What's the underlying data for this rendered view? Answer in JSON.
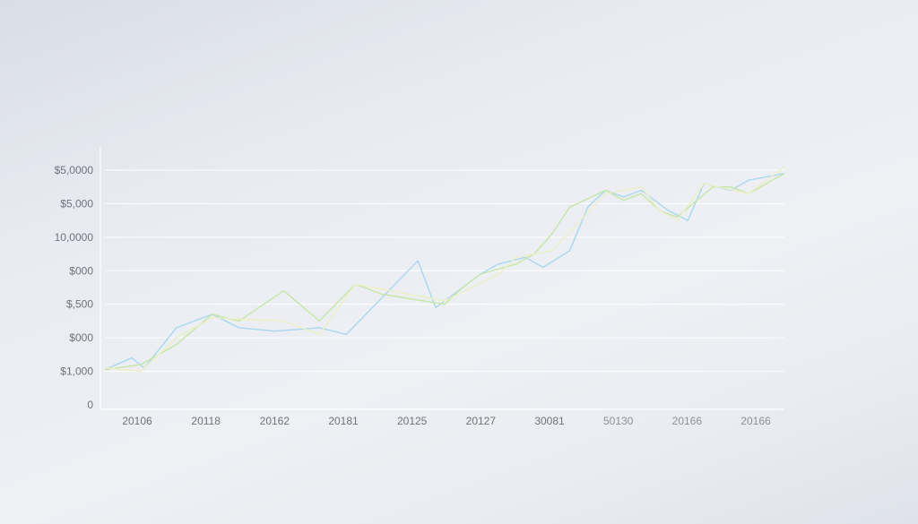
{
  "chart_data": {
    "type": "line",
    "y_tick_labels": [
      "0",
      "$1,000",
      "$000",
      "$,500",
      "$000",
      "10,0000",
      "$5,000",
      "$5,0000"
    ],
    "x_tick_labels": [
      "20106",
      "20118",
      "20162",
      "20181",
      "20125",
      "20127",
      "30081",
      "50130",
      "20166",
      "20166"
    ],
    "ylim": [
      0,
      7
    ],
    "xlim": [
      0,
      19
    ],
    "grid": true,
    "series": [
      {
        "color": "#a9d8f0",
        "x": [
          0,
          0.75,
          1.1,
          2,
          3,
          3.75,
          4.75,
          6,
          6.75,
          8.75,
          9.25,
          10.5,
          11,
          11.75,
          12.25,
          13,
          13.5,
          14,
          14.5,
          15,
          15.75,
          16.3,
          16.75,
          17.5,
          18,
          19
        ],
        "y": [
          1.05,
          1.4,
          1.1,
          2.3,
          2.7,
          2.3,
          2.2,
          2.3,
          2.1,
          4.3,
          2.9,
          3.9,
          4.2,
          4.4,
          4.1,
          4.6,
          5.9,
          6.4,
          6.2,
          6.4,
          5.8,
          5.5,
          6.6,
          6.4,
          6.7,
          6.9
        ]
      },
      {
        "color": "#c5e6a6",
        "x": [
          0,
          1,
          2,
          3,
          3.75,
          5,
          6,
          7,
          7.75,
          9.5,
          10,
          10.5,
          11.5,
          12,
          12.5,
          13,
          14,
          14.5,
          15,
          15.5,
          16,
          17,
          17.5,
          18,
          19
        ],
        "y": [
          1.05,
          1.2,
          1.8,
          2.7,
          2.5,
          3.4,
          2.5,
          3.6,
          3.3,
          3.0,
          3.5,
          3.9,
          4.2,
          4.5,
          5.1,
          5.9,
          6.4,
          6.1,
          6.3,
          5.8,
          5.6,
          6.5,
          6.5,
          6.3,
          6.9
        ]
      },
      {
        "color": "#ecefc4",
        "x": [
          0,
          1,
          2,
          3,
          5,
          6,
          7,
          8.5,
          9.5,
          11,
          11.5,
          12.5,
          14,
          15,
          15.5,
          16,
          16.75,
          18,
          19
        ],
        "y": [
          1.1,
          1.0,
          2.0,
          2.6,
          2.5,
          2.1,
          3.6,
          3.3,
          3.1,
          3.9,
          4.4,
          4.6,
          6.3,
          6.5,
          5.8,
          5.5,
          6.6,
          6.3,
          7.1
        ]
      }
    ]
  }
}
